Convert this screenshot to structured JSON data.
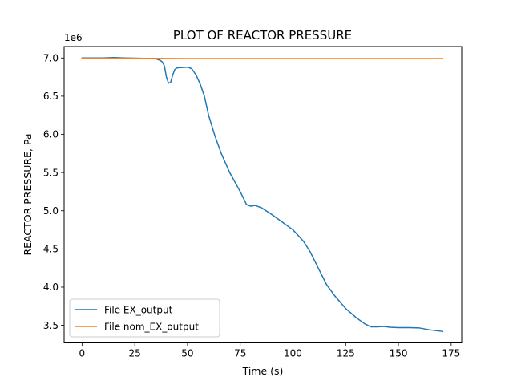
{
  "chart_data": {
    "type": "line",
    "title": "PLOT OF REACTOR PRESSURE",
    "xlabel": "Time (s)",
    "ylabel": "REACTOR PRESSURE, Pa",
    "y_offset_text": "1e6",
    "xlim": [
      -8.5,
      180
    ],
    "ylim": [
      3.27,
      7.15
    ],
    "x_ticks": [
      0,
      25,
      50,
      75,
      100,
      125,
      150,
      175
    ],
    "x_tick_labels": [
      "0",
      "25",
      "50",
      "75",
      "100",
      "125",
      "150",
      "175"
    ],
    "y_ticks": [
      3.5,
      4.0,
      4.5,
      5.0,
      5.5,
      6.0,
      6.5,
      7.0
    ],
    "y_tick_labels": [
      "3.5",
      "4.0",
      "4.5",
      "5.0",
      "5.5",
      "6.0",
      "6.5",
      "7.0"
    ],
    "grid": false,
    "legend_position": "lower-left",
    "series": [
      {
        "name": "File EX_output",
        "color": "#1f77b4",
        "x": [
          0,
          10,
          15,
          20,
          30,
          35,
          37,
          38,
          39,
          40,
          41,
          42,
          43,
          44,
          45,
          47,
          50,
          52,
          54,
          56,
          58,
          60,
          63,
          66,
          70,
          75,
          78,
          80,
          82,
          85,
          90,
          95,
          100,
          105,
          108,
          112,
          116,
          120,
          125,
          130,
          134,
          137,
          140,
          143,
          146,
          150,
          155,
          160,
          165,
          171
        ],
        "y": [
          7.0,
          7.0,
          7.005,
          7.0,
          6.995,
          6.99,
          6.97,
          6.95,
          6.9,
          6.75,
          6.67,
          6.68,
          6.78,
          6.85,
          6.87,
          6.875,
          6.88,
          6.86,
          6.78,
          6.66,
          6.5,
          6.25,
          5.98,
          5.75,
          5.5,
          5.25,
          5.08,
          5.06,
          5.07,
          5.04,
          4.95,
          4.85,
          4.75,
          4.6,
          4.47,
          4.25,
          4.03,
          3.88,
          3.72,
          3.6,
          3.52,
          3.48,
          3.48,
          3.485,
          3.475,
          3.47,
          3.47,
          3.465,
          3.44,
          3.42
        ]
      },
      {
        "name": "File nom_EX_output",
        "color": "#ff7f0e",
        "x": [
          0,
          20,
          35,
          50,
          100,
          150,
          171
        ],
        "y": [
          6.995,
          6.995,
          6.995,
          6.992,
          6.992,
          6.992,
          6.992
        ]
      }
    ]
  }
}
